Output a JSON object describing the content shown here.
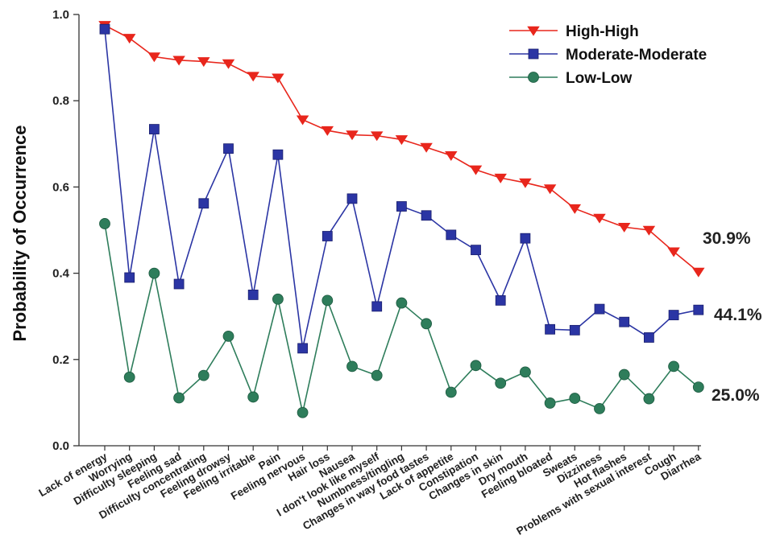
{
  "chart_data": {
    "type": "line",
    "ylabel": "Probability of Occurrence",
    "xlabel": "",
    "ylim": [
      0,
      1
    ],
    "yticks": [
      "0.0",
      "0.2",
      "0.4",
      "0.6",
      "0.8",
      "1.0"
    ],
    "categories": [
      "Lack of energy",
      "Worrying",
      "Difficulty sleeping",
      "Feeling sad",
      "Difficulty concentrating",
      "Feeling drowsy",
      "Feeling irritable",
      "Pain",
      "Feeling nervous",
      "Hair loss",
      "Nausea",
      "I don't look like myself",
      "Numbness/tingling",
      "Changes in way food tastes",
      "Lack of appetite",
      "Constipation",
      "Changes in skin",
      "Dry mouth",
      "Feeling bloated",
      "Sweats",
      "Dizziness",
      "Hot flashes",
      "Problems with sexual interest",
      "Cough",
      "Diarrhea"
    ],
    "series": [
      {
        "name": "High-High",
        "color": "#e8261c",
        "marker": "triangle-down",
        "end_label": "30.9%",
        "values": [
          0.975,
          0.945,
          0.902,
          0.894,
          0.891,
          0.886,
          0.857,
          0.853,
          0.756,
          0.731,
          0.721,
          0.719,
          0.71,
          0.692,
          0.673,
          0.64,
          0.621,
          0.61,
          0.596,
          0.55,
          0.528,
          0.507,
          0.5,
          0.45,
          0.403
        ]
      },
      {
        "name": "Moderate-Moderate",
        "color": "#2b35a4",
        "marker": "square",
        "end_label": "44.1%",
        "values": [
          0.966,
          0.39,
          0.734,
          0.375,
          0.562,
          0.689,
          0.35,
          0.675,
          0.226,
          0.486,
          0.573,
          0.323,
          0.555,
          0.534,
          0.489,
          0.454,
          0.337,
          0.481,
          0.27,
          0.268,
          0.317,
          0.287,
          0.251,
          0.303,
          0.315
        ]
      },
      {
        "name": "Low-Low",
        "color": "#2e7d5b",
        "marker": "circle",
        "end_label": "25.0%",
        "values": [
          0.515,
          0.159,
          0.4,
          0.111,
          0.163,
          0.254,
          0.113,
          0.34,
          0.077,
          0.337,
          0.184,
          0.163,
          0.331,
          0.283,
          0.124,
          0.186,
          0.145,
          0.171,
          0.099,
          0.11,
          0.086,
          0.165,
          0.109,
          0.184,
          0.136
        ]
      }
    ],
    "legend": "top-right",
    "grid": false
  }
}
